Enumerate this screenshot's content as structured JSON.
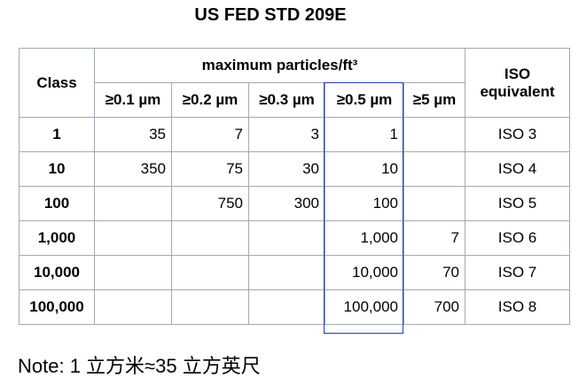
{
  "title": "US FED STD 209E",
  "table": {
    "class_header": "Class",
    "group_header": "maximum particles/ft³",
    "iso_header": "ISO equivalent",
    "columns": [
      "≥0.1 µm",
      "≥0.2 µm",
      "≥0.3 µm",
      "≥0.5 µm",
      "≥5 µm"
    ],
    "rows": [
      [
        "1",
        "35",
        "7",
        "3",
        "1",
        null,
        "ISO 3"
      ],
      [
        "10",
        "350",
        "75",
        "30",
        "10",
        null,
        "ISO 4"
      ],
      [
        "100",
        null,
        "750",
        "300",
        "100",
        null,
        "ISO 5"
      ],
      [
        "1,000",
        null,
        null,
        null,
        "1,000",
        "7",
        "ISO 6"
      ],
      [
        "10,000",
        null,
        null,
        null,
        "10,000",
        "70",
        "ISO 7"
      ],
      [
        "100,000",
        null,
        null,
        null,
        "100,000",
        "700",
        "ISO 8"
      ]
    ]
  },
  "note": "Note: 1 立方米≈35 立方英尺"
}
